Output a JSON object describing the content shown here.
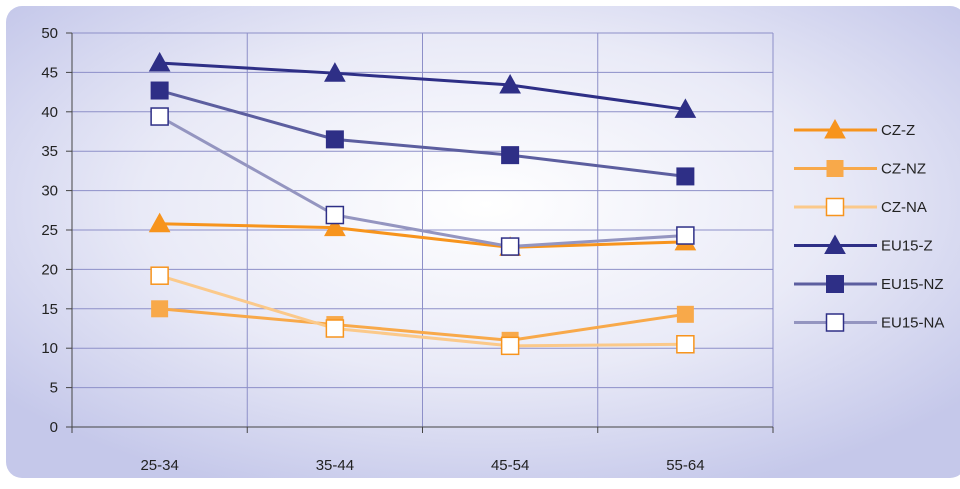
{
  "chart_data": {
    "type": "line",
    "categories": [
      "25-34",
      "35-44",
      "45-54",
      "55-64"
    ],
    "ylim": [
      0,
      50
    ],
    "yticks": [
      0,
      5,
      10,
      15,
      20,
      25,
      30,
      35,
      40,
      45,
      50
    ],
    "grid": true,
    "legend": "right",
    "series": [
      {
        "name": "CZ-Z",
        "values": [
          25.8,
          25.3,
          22.8,
          23.5
        ],
        "color": "#f7941d",
        "marker": "triangle",
        "fill": "#f7941d"
      },
      {
        "name": "CZ-NZ",
        "values": [
          15.0,
          13.0,
          11.0,
          14.3
        ],
        "color": "#f8a94a",
        "marker": "square",
        "fill": "#f8a94a"
      },
      {
        "name": "CZ-NA",
        "values": [
          19.2,
          12.5,
          10.3,
          10.5
        ],
        "color": "#fbc98a",
        "marker": "square-open",
        "fill": "#ffffff"
      },
      {
        "name": "EU15-Z",
        "values": [
          46.2,
          44.9,
          43.4,
          40.3
        ],
        "color": "#2e2f86",
        "marker": "triangle",
        "fill": "#2e2f86"
      },
      {
        "name": "EU15-NZ",
        "values": [
          42.7,
          36.5,
          34.5,
          31.8
        ],
        "color": "#5c5e9f",
        "marker": "square",
        "fill": "#2e2f86"
      },
      {
        "name": "EU15-NA",
        "values": [
          39.4,
          26.9,
          22.9,
          24.3
        ],
        "color": "#9495c0",
        "marker": "square-open",
        "fill": "#ffffff"
      }
    ]
  }
}
